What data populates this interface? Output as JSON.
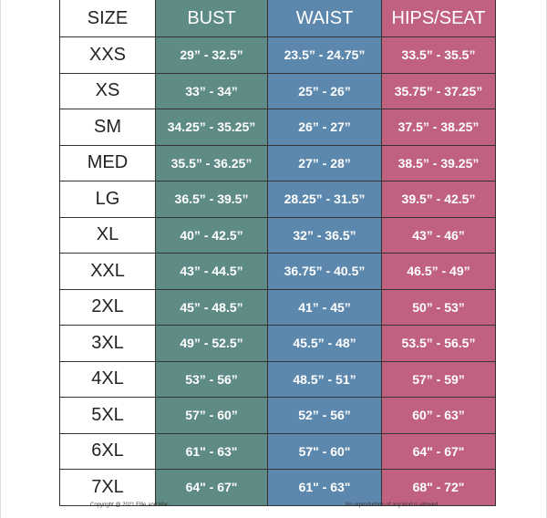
{
  "table": {
    "header": [
      "SIZE",
      "BUST",
      "WAIST",
      "HIPS/SEAT"
    ],
    "rows": [
      [
        "XXS",
        "29” - 32.5”",
        "23.5” - 24.75”",
        "33.5” - 35.5”"
      ],
      [
        "XS",
        "33” - 34”",
        "25” - 26”",
        "35.75” - 37.25”"
      ],
      [
        "SM",
        "34.25” - 35.25”",
        "26” - 27”",
        "37.5” - 38.25”"
      ],
      [
        "MED",
        "35.5” - 36.25”",
        "27” - 28”",
        "38.5” - 39.25”"
      ],
      [
        "LG",
        "36.5” - 39.5”",
        "28.25” - 31.5”",
        "39.5” - 42.5”"
      ],
      [
        "XL",
        "40” - 42.5”",
        "32” - 36.5”",
        "43” - 46”"
      ],
      [
        "XXL",
        "43” - 44.5”",
        "36.75” - 40.5”",
        "46.5” - 49”"
      ],
      [
        "2XL",
        "45” - 48.5”",
        "41” - 45”",
        "50” - 53”"
      ],
      [
        "3XL",
        "49” - 52.5”",
        "45.5” - 48”",
        "53.5” - 56.5”"
      ],
      [
        "4XL",
        "53” - 56”",
        "48.5” - 51”",
        "57” - 59”"
      ],
      [
        "5XL",
        "57” - 60”",
        "52” - 56”",
        "60” - 63”"
      ],
      [
        "6XL",
        "61\" - 63\"",
        "57\" - 60\"",
        "64\" - 67\""
      ],
      [
        "7XL",
        "64\" - 67\"",
        "61\" - 63\"",
        "68\" - 72\""
      ]
    ]
  },
  "footer": {
    "copyright": "Copyright @ 2021 Ellie and Mac",
    "notice": "No reproduction of any kind is allowed."
  }
}
